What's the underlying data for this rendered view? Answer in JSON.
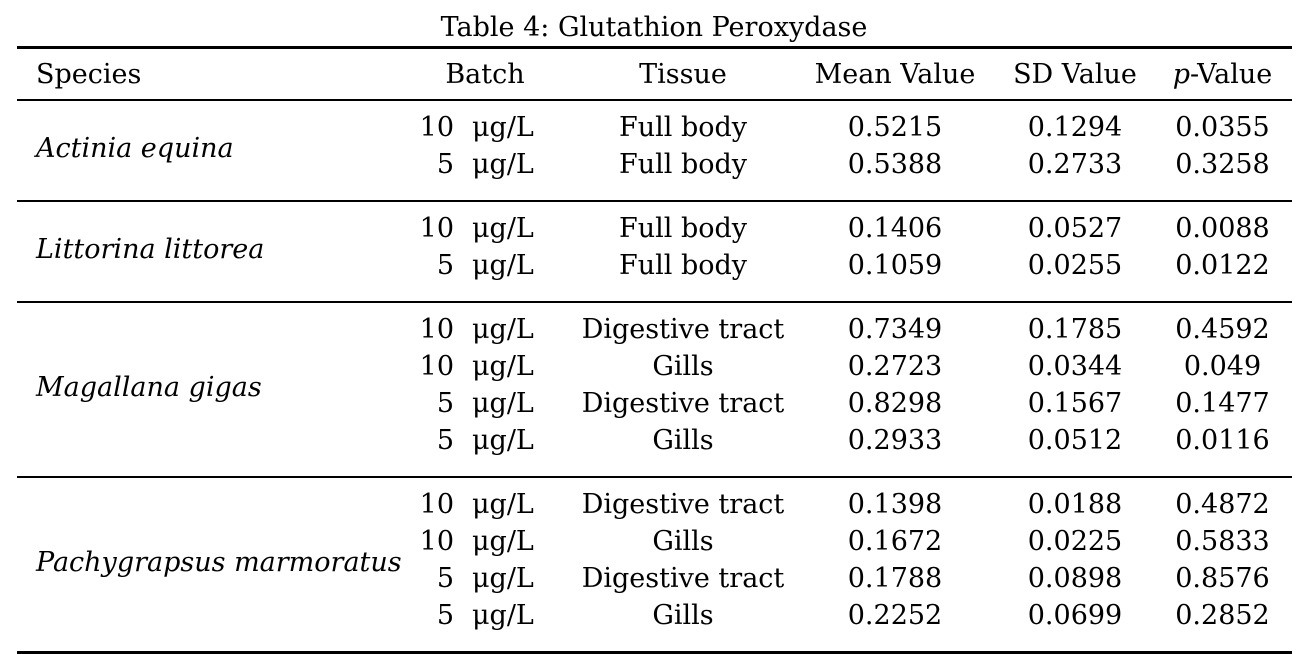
{
  "caption": "Table 4: Glutathion Peroxydase",
  "headers": {
    "species": "Species",
    "batch": "Batch",
    "tissue": "Tissue",
    "mean": "Mean Value",
    "sd": "SD Value",
    "p_prefix": "p",
    "p_suffix": "-Value"
  },
  "groups": [
    {
      "species": "Actinia equina",
      "rows": [
        {
          "dose": "10",
          "unit": "μg/L",
          "tissue": "Full body",
          "mean": "0.5215",
          "sd": "0.1294",
          "p": "0.0355"
        },
        {
          "dose": "5",
          "unit": "μg/L",
          "tissue": "Full body",
          "mean": "0.5388",
          "sd": "0.2733",
          "p": "0.3258"
        }
      ]
    },
    {
      "species": "Littorina littorea",
      "rows": [
        {
          "dose": "10",
          "unit": "μg/L",
          "tissue": "Full body",
          "mean": "0.1406",
          "sd": "0.0527",
          "p": "0.0088"
        },
        {
          "dose": "5",
          "unit": "μg/L",
          "tissue": "Full body",
          "mean": "0.1059",
          "sd": "0.0255",
          "p": "0.0122"
        }
      ]
    },
    {
      "species": "Magallana gigas",
      "rows": [
        {
          "dose": "10",
          "unit": "μg/L",
          "tissue": "Digestive tract",
          "mean": "0.7349",
          "sd": "0.1785",
          "p": "0.4592"
        },
        {
          "dose": "10",
          "unit": "μg/L",
          "tissue": "Gills",
          "mean": "0.2723",
          "sd": "0.0344",
          "p": "0.049"
        },
        {
          "dose": "5",
          "unit": "μg/L",
          "tissue": "Digestive tract",
          "mean": "0.8298",
          "sd": "0.1567",
          "p": "0.1477"
        },
        {
          "dose": "5",
          "unit": "μg/L",
          "tissue": "Gills",
          "mean": "0.2933",
          "sd": "0.0512",
          "p": "0.0116"
        }
      ]
    },
    {
      "species": "Pachygrapsus marmoratus",
      "rows": [
        {
          "dose": "10",
          "unit": "μg/L",
          "tissue": "Digestive tract",
          "mean": "0.1398",
          "sd": "0.0188",
          "p": "0.4872"
        },
        {
          "dose": "10",
          "unit": "μg/L",
          "tissue": "Gills",
          "mean": "0.1672",
          "sd": "0.0225",
          "p": "0.5833"
        },
        {
          "dose": "5",
          "unit": "μg/L",
          "tissue": "Digestive tract",
          "mean": "0.1788",
          "sd": "0.0898",
          "p": "0.8576"
        },
        {
          "dose": "5",
          "unit": "μg/L",
          "tissue": "Gills",
          "mean": "0.2252",
          "sd": "0.0699",
          "p": "0.2852"
        }
      ]
    }
  ]
}
